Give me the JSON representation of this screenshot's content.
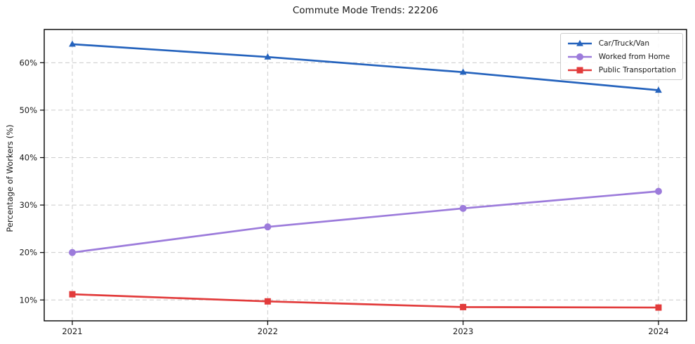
{
  "chart_data": {
    "type": "line",
    "title": "Commute Mode Trends: 22206",
    "xlabel": "",
    "ylabel": "Percentage of Workers (%)",
    "categories": [
      "2021",
      "2022",
      "2023",
      "2024"
    ],
    "y_tick_labels": [
      "10%",
      "20%",
      "30%",
      "40%",
      "50%",
      "60%"
    ],
    "y_tick_values": [
      10,
      20,
      30,
      40,
      50,
      60
    ],
    "ylim": [
      5.6,
      67.0
    ],
    "grid": true,
    "grid_style": "dashed",
    "grid_color": "#cccccc",
    "axis_color": "#000000",
    "text_color": "#1a1a1a",
    "legend_position": "upper-right",
    "series": [
      {
        "name": "Car/Truck/Van",
        "color": "#2563bd",
        "marker": "triangle",
        "values": [
          63.9,
          61.2,
          58.0,
          54.2
        ]
      },
      {
        "name": "Worked from Home",
        "color": "#9c7bdb",
        "marker": "circle",
        "values": [
          20.0,
          25.4,
          29.3,
          32.9
        ]
      },
      {
        "name": "Public Transportation",
        "color": "#e23b3b",
        "marker": "square",
        "values": [
          11.2,
          9.7,
          8.5,
          8.4
        ]
      }
    ]
  }
}
